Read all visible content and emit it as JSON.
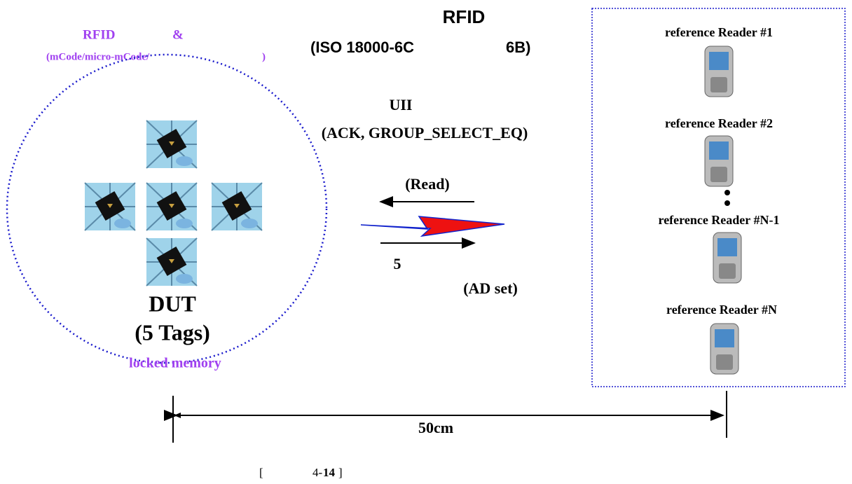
{
  "title": {
    "line1": "RFID",
    "line2a": "(ISO 18000-6C",
    "line2b": "6B)"
  },
  "tag_label": {
    "line1a": "RFID",
    "line1b": "&",
    "line2a": "(mCode/micro-mCode/",
    "line2b": ")"
  },
  "command": {
    "line1": "UII",
    "line2": "(ACK, GROUP_SELECT_EQ)"
  },
  "read": "(Read)",
  "count": "5",
  "ad_set": "(AD set)",
  "dut": {
    "name": "DUT",
    "tags": "(5 Tags)",
    "memory": "locked memory"
  },
  "readers": [
    "reference Reader #1",
    "reference Reader #2",
    "reference Reader #N-1",
    "reference Reader #N"
  ],
  "distance": "50cm",
  "caption": {
    "open": "[",
    "number": "4-",
    "bold": "14",
    "close": "]"
  }
}
